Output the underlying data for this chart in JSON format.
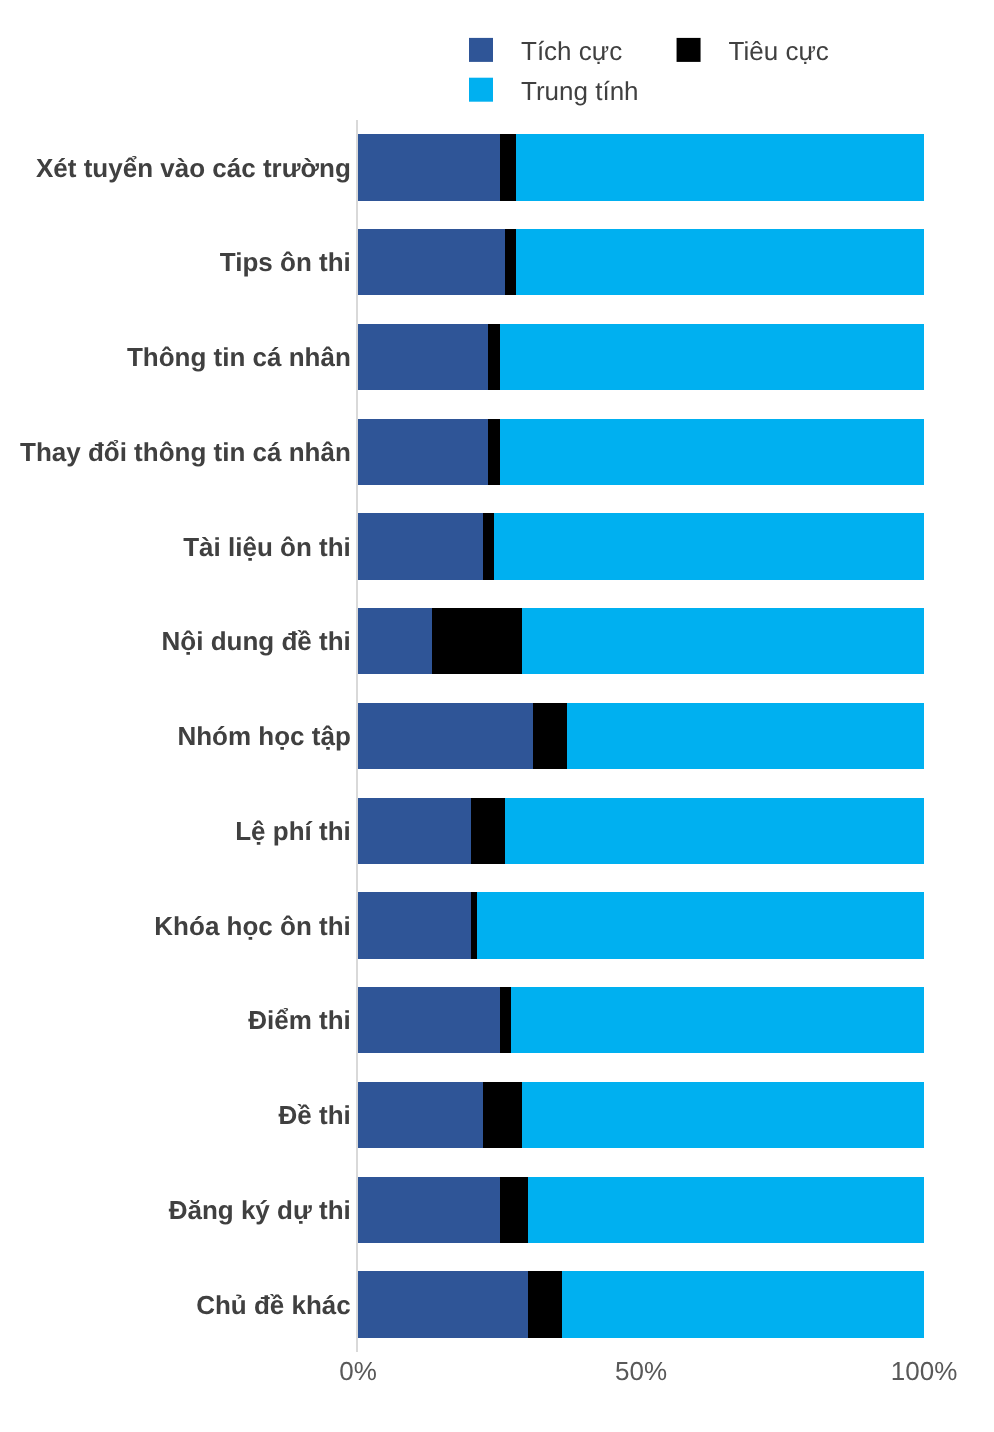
{
  "chart_data": {
    "type": "bar",
    "orientation": "horizontal",
    "stacked": true,
    "legend": "top",
    "categories": [
      "Xét tuyển vào các trường",
      "Tips ôn thi",
      "Thông tin cá nhân",
      "Thay đổi thông tin cá nhân",
      "Tài liệu ôn thi",
      "Nội dung đề thi",
      "Nhóm học tập",
      "Lệ phí thi",
      "Khóa học ôn thi",
      "Điểm thi",
      "Đề thi",
      "Đăng ký dự thi",
      "Chủ đề khác"
    ],
    "series": [
      {
        "name": "Tích cực",
        "color": "#2f5597",
        "values": [
          25,
          26,
          23,
          23,
          22,
          13,
          31,
          20,
          20,
          25,
          22,
          25,
          30
        ]
      },
      {
        "name": "Tiêu cực",
        "color": "#000000",
        "values": [
          3,
          2,
          2,
          2,
          2,
          16,
          6,
          6,
          1,
          2,
          7,
          5,
          6
        ]
      },
      {
        "name": "Trung tính",
        "color": "#00b0f0",
        "values": [
          72,
          72,
          75,
          75,
          76,
          71,
          63,
          74,
          79,
          73,
          71,
          70,
          64
        ]
      }
    ],
    "xlim": [
      0,
      100
    ],
    "xticks": [
      {
        "value": 0,
        "label": "0%"
      },
      {
        "value": 50,
        "label": "50%"
      },
      {
        "value": 100,
        "label": "100%"
      }
    ]
  }
}
